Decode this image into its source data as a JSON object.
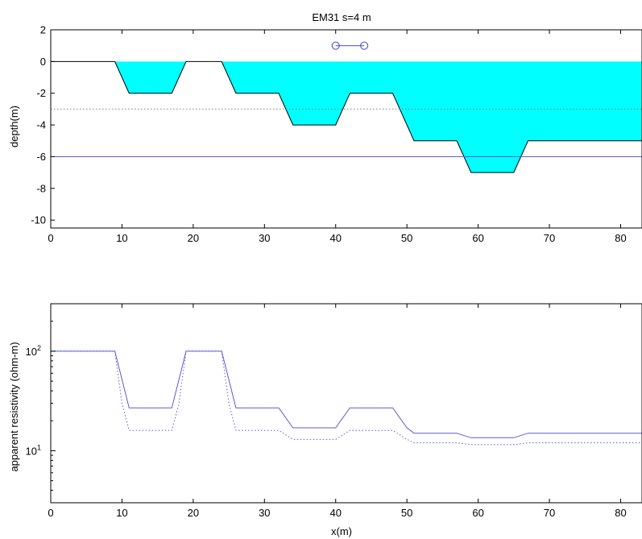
{
  "chart_data": [
    {
      "type": "area",
      "title": "EM31 s=4 m",
      "xlabel": "",
      "ylabel": "depth(m)",
      "xlim": [
        0,
        83
      ],
      "ylim": [
        -10.5,
        2
      ],
      "xticks": [
        0,
        10,
        20,
        30,
        40,
        50,
        60,
        70,
        80
      ],
      "yticks": [
        2,
        0,
        -2,
        -4,
        -6,
        -8,
        -10
      ],
      "grid": false,
      "colors": {
        "fill": "#00ffff",
        "outline": "#000000",
        "line": "#5b5bd8",
        "dotted": "#808080"
      },
      "series": [
        {
          "kind": "profile-fill",
          "x": [
            0,
            9,
            11,
            17,
            19,
            24,
            26,
            32,
            34,
            40,
            42,
            48,
            51,
            57,
            59,
            65,
            67,
            83
          ],
          "y": [
            0,
            0,
            -2,
            -2,
            0,
            0,
            -2,
            -2,
            -4,
            -4,
            -2,
            -2,
            -5,
            -5,
            -7,
            -7,
            -5,
            -5
          ]
        },
        {
          "kind": "hline-solid",
          "y": -6
        },
        {
          "kind": "hline-dotted",
          "y": -3
        },
        {
          "kind": "instrument",
          "x": [
            40,
            44
          ],
          "y": 1
        }
      ]
    },
    {
      "type": "line",
      "title": "",
      "xlabel": "x(m)",
      "ylabel": "apparent resistivity (ohm-m)",
      "xlim": [
        0,
        83
      ],
      "ylim": [
        3,
        300
      ],
      "yscale": "log",
      "xticks": [
        0,
        10,
        20,
        30,
        40,
        50,
        60,
        70,
        80
      ],
      "yticks": [
        {
          "value": 100,
          "base": "10",
          "exp": "2"
        },
        {
          "value": 10,
          "base": "10",
          "exp": "1"
        }
      ],
      "grid": false,
      "series": [
        {
          "style": "solid",
          "x": [
            0,
            9,
            11,
            17,
            19,
            24,
            26,
            32,
            34,
            40,
            42,
            48,
            50,
            51,
            57,
            59,
            65,
            67,
            83
          ],
          "y": [
            100,
            100,
            27,
            27,
            100,
            100,
            27,
            27,
            17,
            17,
            27,
            27,
            17,
            15,
            15,
            13.5,
            13.5,
            15,
            15
          ]
        },
        {
          "style": "dotted",
          "x": [
            0,
            9,
            10,
            11,
            17,
            18,
            19,
            24,
            25,
            26,
            32,
            34,
            40,
            42,
            48,
            50,
            51,
            57,
            59,
            65,
            67,
            83
          ],
          "y": [
            100,
            100,
            30,
            16,
            16,
            30,
            100,
            100,
            30,
            16,
            16,
            13,
            13,
            16,
            16,
            13,
            12,
            12,
            11.5,
            11.5,
            12,
            12
          ]
        }
      ]
    }
  ]
}
